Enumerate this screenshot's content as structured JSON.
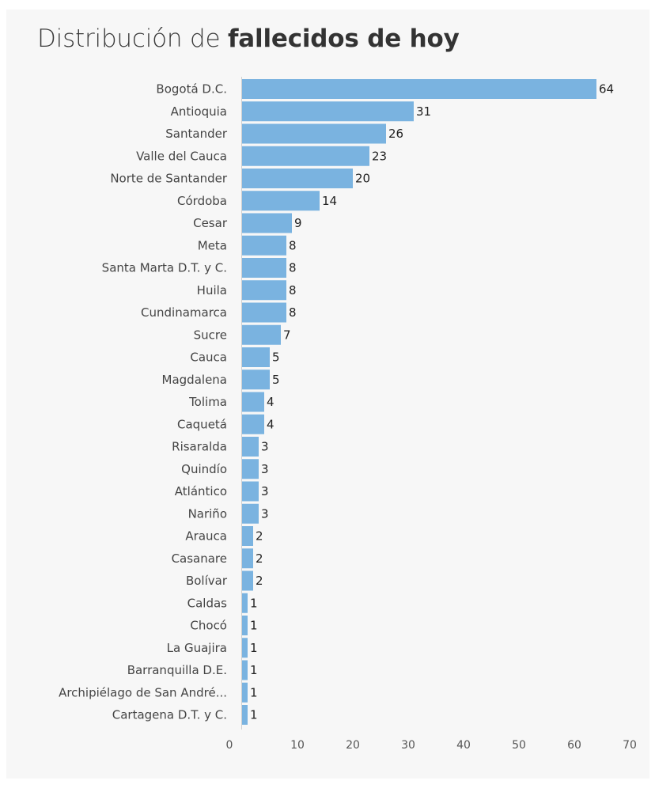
{
  "chart_data": {
    "type": "bar",
    "orientation": "horizontal",
    "title_light": "Distribución de ",
    "title_bold": "fallecidos de hoy",
    "categories": [
      "Bogotá D.C.",
      "Antioquia",
      "Santander",
      "Valle del Cauca",
      "Norte de Santander",
      "Córdoba",
      "Cesar",
      "Meta",
      "Santa Marta D.T. y C.",
      "Huila",
      "Cundinamarca",
      "Sucre",
      "Cauca",
      "Magdalena",
      "Tolima",
      "Caquetá",
      "Risaralda",
      "Quindío",
      "Atlántico",
      "Nariño",
      "Arauca",
      "Casanare",
      "Bolívar",
      "Caldas",
      "Chocó",
      "La Guajira",
      "Barranquilla D.E.",
      "Archipiélago de San André...",
      "Cartagena D.T. y C."
    ],
    "values": [
      64,
      31,
      26,
      23,
      20,
      14,
      9,
      8,
      8,
      8,
      8,
      7,
      5,
      5,
      4,
      4,
      3,
      3,
      3,
      3,
      2,
      2,
      2,
      1,
      1,
      1,
      1,
      1,
      1
    ],
    "xlim": [
      0,
      70
    ],
    "xticks": [
      0,
      10,
      20,
      30,
      40,
      50,
      60,
      70
    ],
    "bar_color": "#7ab3e0",
    "grid": false
  }
}
